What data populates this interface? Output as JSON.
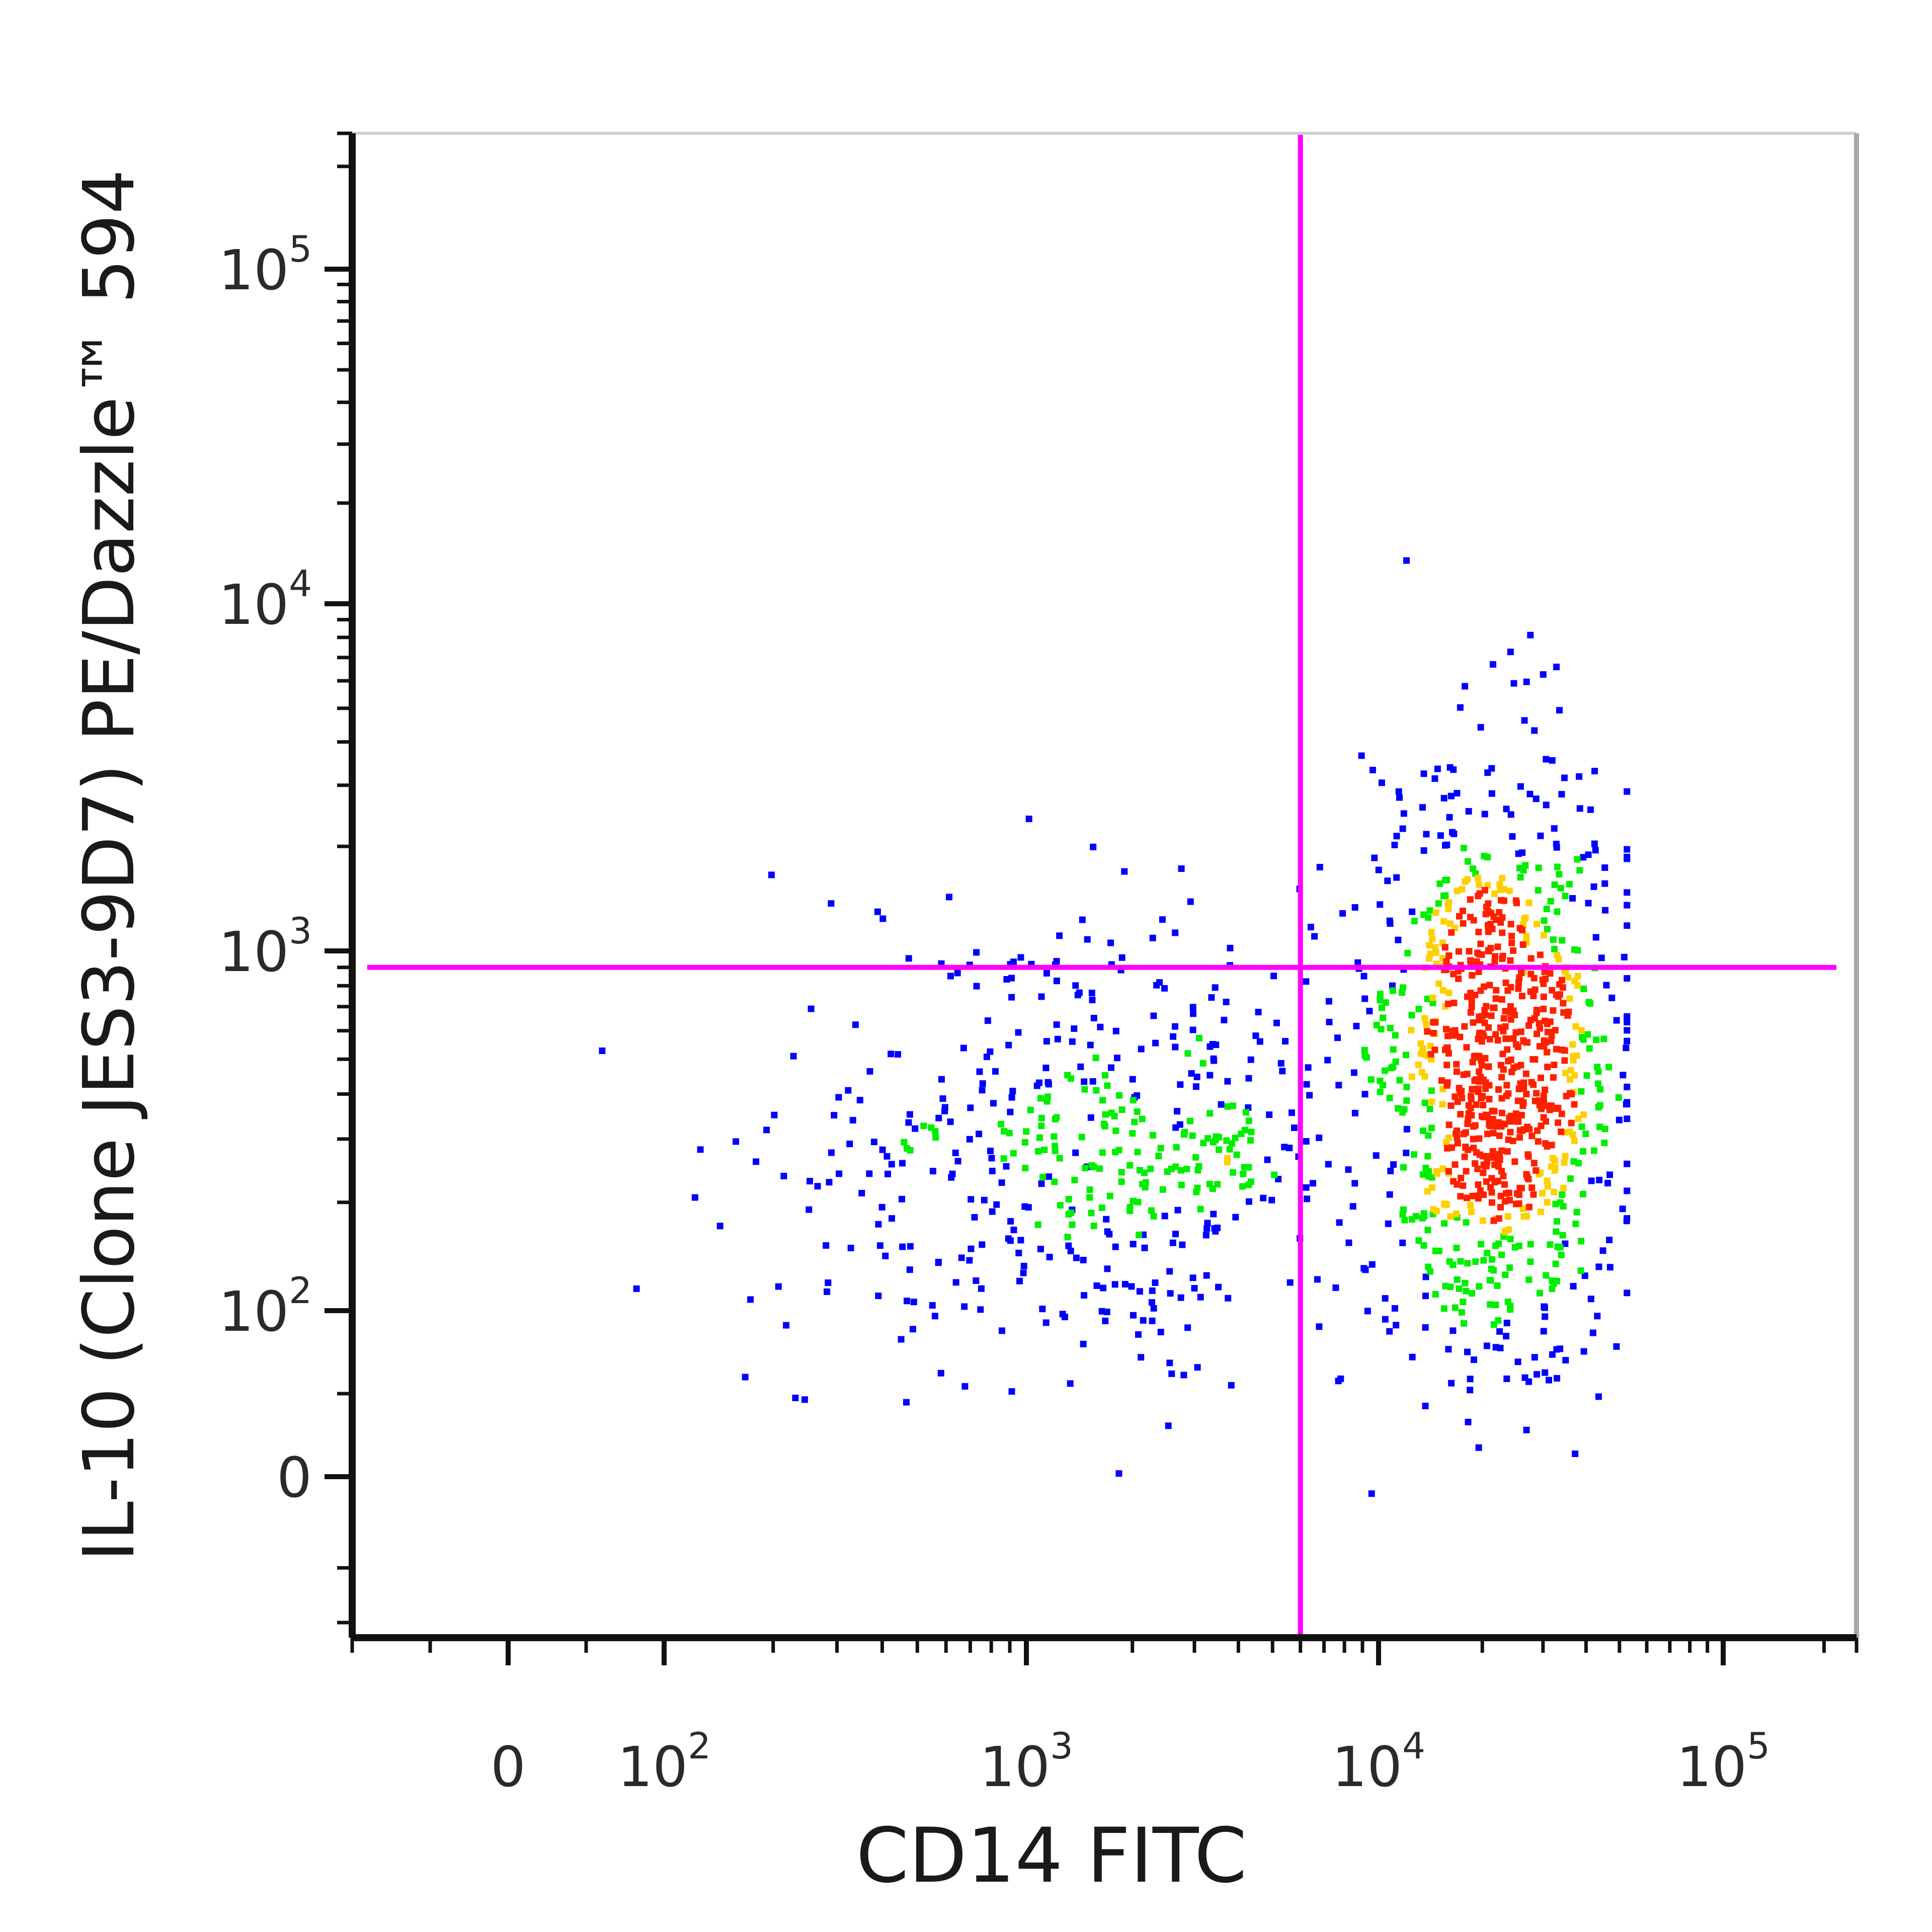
{
  "chart_data": {
    "type": "scatter",
    "subtype": "flow-cytometry density dot plot",
    "title": "",
    "xlabel": "CD14 FITC",
    "ylabel": "IL-10 (Clone JES3-9D7) PE/Dazzle™ 594",
    "x_scale": "biexponential (linear near 0, log above ~10^2)",
    "y_scale": "biexponential (linear near 0, log above ~10^2)",
    "x_range": [
      -100,
      250000
    ],
    "y_range": [
      -80,
      250000
    ],
    "x_ticks": [
      {
        "value": 0,
        "base": "0",
        "exp": ""
      },
      {
        "value": 100,
        "base": "10",
        "exp": "2"
      },
      {
        "value": 1000,
        "base": "10",
        "exp": "3"
      },
      {
        "value": 10000,
        "base": "10",
        "exp": "4"
      },
      {
        "value": 100000,
        "base": "10",
        "exp": "5"
      }
    ],
    "y_ticks": [
      {
        "value": 0,
        "base": "0",
        "exp": ""
      },
      {
        "value": 100,
        "base": "10",
        "exp": "2"
      },
      {
        "value": 1000,
        "base": "10",
        "exp": "3"
      },
      {
        "value": 10000,
        "base": "10",
        "exp": "4"
      },
      {
        "value": 100000,
        "base": "10",
        "exp": "5"
      }
    ],
    "quadrant_gate": {
      "x": 6000,
      "y": 900,
      "color": "#ff00ff"
    },
    "density_colors": {
      "low": "#0000ff",
      "medium": "#00ee00",
      "high": "#ffd000",
      "highest": "#ff2000"
    },
    "populations": [
      {
        "name_hidden": true,
        "x_center": 22000,
        "y_center": 450,
        "x_log_sd": 0.17,
        "y_log_sd": 0.42,
        "count": 1000
      },
      {
        "name_hidden": true,
        "x_center": 1500,
        "y_center": 270,
        "x_log_sd": 0.42,
        "y_log_sd": 0.32,
        "count": 520
      }
    ],
    "grid": false,
    "legend": "none"
  }
}
